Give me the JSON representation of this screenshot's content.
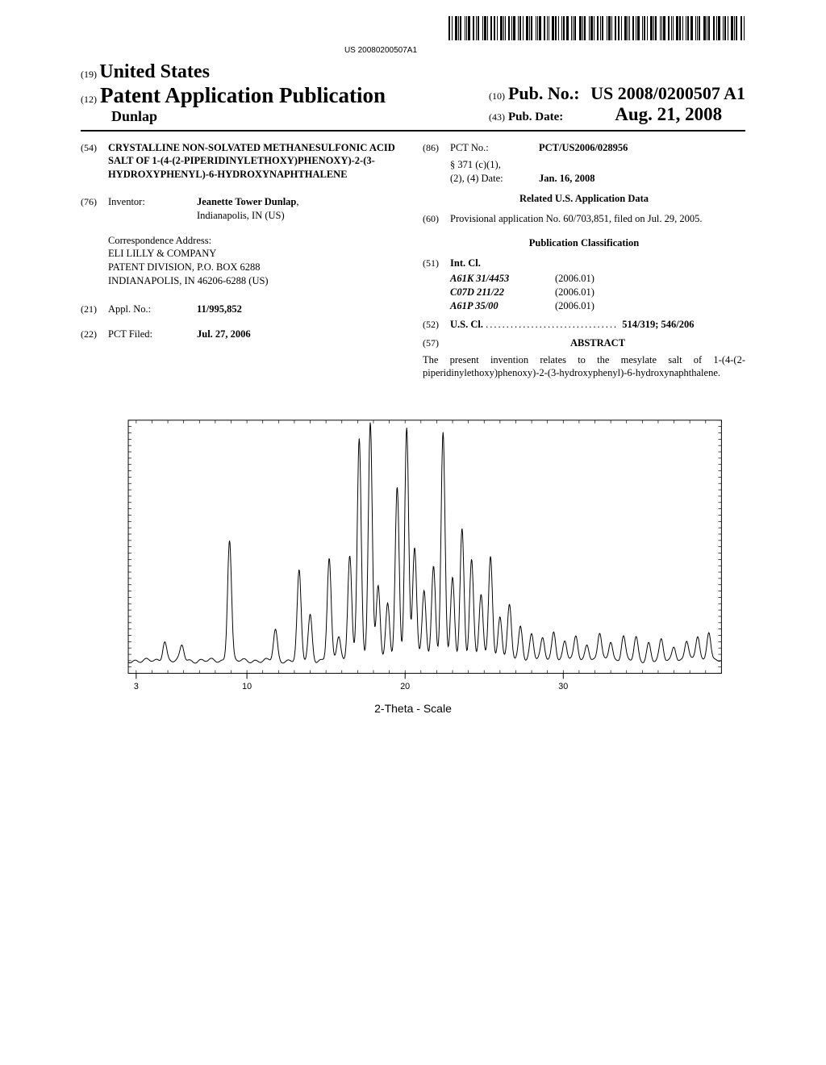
{
  "barcode_number": "US 20080200507A1",
  "masthead": {
    "code19": "(19)",
    "country": "United States",
    "code12": "(12)",
    "pubtype": "Patent Application Publication",
    "author": "Dunlap",
    "code10": "(10)",
    "pub_no_label": "Pub. No.:",
    "pub_no": "US 2008/0200507 A1",
    "code43": "(43)",
    "pub_date_label": "Pub. Date:",
    "pub_date": "Aug. 21, 2008"
  },
  "left": {
    "code54": "(54)",
    "title": "CRYSTALLINE NON-SOLVATED METHANESULFONIC ACID SALT OF 1-(4-(2-PIPERIDINYLETHOXY)PHENOXY)-2-(3-HYDROXYPHENYL)-6-HYDROXYNAPHTHALENE",
    "code76": "(76)",
    "inventor_label": "Inventor:",
    "inventor_name": "Jeanette Tower Dunlap",
    "inventor_loc": "Indianapolis, IN (US)",
    "corr_label": "Correspondence Address:",
    "corr_line1": "ELI LILLY & COMPANY",
    "corr_line2": "PATENT DIVISION, P.O. BOX 6288",
    "corr_line3": "INDIANAPOLIS, IN 46206-6288 (US)",
    "code21": "(21)",
    "appl_label": "Appl. No.:",
    "appl_no": "11/995,852",
    "code22": "(22)",
    "pct_filed_label": "PCT Filed:",
    "pct_filed": "Jul. 27, 2006"
  },
  "right": {
    "code86": "(86)",
    "pct_no_label": "PCT No.:",
    "pct_no": "PCT/US2006/028956",
    "s371_label1": "§ 371 (c)(1),",
    "s371_label2": "(2), (4) Date:",
    "s371_date": "Jan. 16, 2008",
    "related_heading": "Related U.S. Application Data",
    "code60": "(60)",
    "provisional": "Provisional application No. 60/703,851, filed on Jul. 29, 2005.",
    "classification_heading": "Publication Classification",
    "code51": "(51)",
    "int_cl_label": "Int. Cl.",
    "int_cl": [
      {
        "code": "A61K 31/4453",
        "year": "(2006.01)"
      },
      {
        "code": "C07D 211/22",
        "year": "(2006.01)"
      },
      {
        "code": "A61P 35/00",
        "year": "(2006.01)"
      }
    ],
    "code52": "(52)",
    "us_cl_label": "U.S. Cl.",
    "us_cl_vals": "514/319; 546/206",
    "code57": "(57)",
    "abstract_label": "ABSTRACT",
    "abstract_text": "The present invention relates to the mesylate salt of 1-(4-(2-piperidinylethoxy)phenoxy)-2-(3-hydroxyphenyl)-6-hydroxynaphthalene."
  },
  "chart": {
    "type": "line",
    "xlabel": "2-Theta - Scale",
    "xlim": [
      2.5,
      40
    ],
    "ylim": [
      0,
      100
    ],
    "x_ticks": [
      3,
      10,
      20,
      30
    ],
    "minor_tick_step": 1,
    "background_color": "#ffffff",
    "line_color": "#000000",
    "axis_color": "#000000",
    "line_width": 1.0,
    "tick_font_family": "Arial, sans-serif",
    "tick_fontsize": 11,
    "xlabel_fontsize": 14,
    "aspect_ratio": 2.3,
    "peaks": [
      {
        "x": 4.8,
        "h": 8
      },
      {
        "x": 5.9,
        "h": 6
      },
      {
        "x": 8.9,
        "h": 48
      },
      {
        "x": 11.8,
        "h": 12
      },
      {
        "x": 13.3,
        "h": 35
      },
      {
        "x": 14.0,
        "h": 18
      },
      {
        "x": 15.2,
        "h": 40
      },
      {
        "x": 15.8,
        "h": 10
      },
      {
        "x": 16.5,
        "h": 42
      },
      {
        "x": 17.1,
        "h": 88
      },
      {
        "x": 17.8,
        "h": 95
      },
      {
        "x": 18.3,
        "h": 30
      },
      {
        "x": 18.9,
        "h": 22
      },
      {
        "x": 19.5,
        "h": 68
      },
      {
        "x": 20.1,
        "h": 92
      },
      {
        "x": 20.6,
        "h": 45
      },
      {
        "x": 21.2,
        "h": 28
      },
      {
        "x": 21.8,
        "h": 38
      },
      {
        "x": 22.4,
        "h": 90
      },
      {
        "x": 23.0,
        "h": 32
      },
      {
        "x": 23.6,
        "h": 52
      },
      {
        "x": 24.2,
        "h": 40
      },
      {
        "x": 24.8,
        "h": 26
      },
      {
        "x": 25.4,
        "h": 42
      },
      {
        "x": 26.0,
        "h": 18
      },
      {
        "x": 26.6,
        "h": 22
      },
      {
        "x": 27.3,
        "h": 14
      },
      {
        "x": 28.0,
        "h": 11
      },
      {
        "x": 28.7,
        "h": 9
      },
      {
        "x": 29.4,
        "h": 12
      },
      {
        "x": 30.1,
        "h": 8
      },
      {
        "x": 30.8,
        "h": 10
      },
      {
        "x": 31.5,
        "h": 7
      },
      {
        "x": 32.3,
        "h": 11
      },
      {
        "x": 33.0,
        "h": 8
      },
      {
        "x": 33.8,
        "h": 10
      },
      {
        "x": 34.6,
        "h": 9
      },
      {
        "x": 35.4,
        "h": 7
      },
      {
        "x": 36.2,
        "h": 8
      },
      {
        "x": 37.0,
        "h": 6
      },
      {
        "x": 37.8,
        "h": 8
      },
      {
        "x": 38.5,
        "h": 10
      },
      {
        "x": 39.2,
        "h": 12
      }
    ],
    "baseline": 5,
    "peak_width": 0.35
  }
}
